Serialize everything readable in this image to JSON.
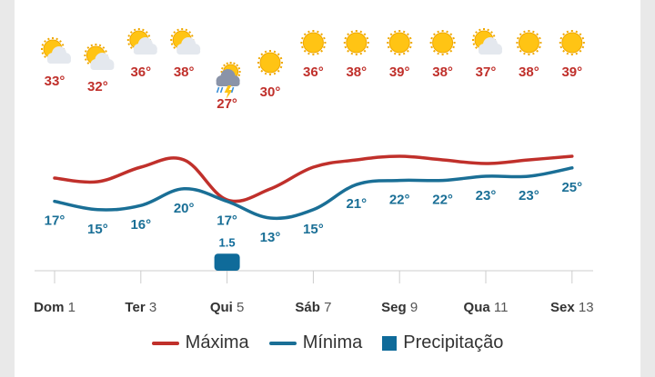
{
  "colors": {
    "max": "#c0302b",
    "min": "#1a6f96",
    "precip": "#0f6b9a",
    "axis": "#cccccc",
    "grid": "#e6e6e6"
  },
  "legend": {
    "max": "Máxima",
    "min": "Mínima",
    "precip": "Precipitação"
  },
  "chart_data": {
    "type": "line",
    "x": [
      1,
      2,
      3,
      4,
      5,
      6,
      7,
      8,
      9,
      10,
      11,
      12,
      13
    ],
    "tick_labels": [
      {
        "x": 1,
        "day": "Dom",
        "num": "1"
      },
      {
        "x": 3,
        "day": "Ter",
        "num": "3"
      },
      {
        "x": 5,
        "day": "Qui",
        "num": "5"
      },
      {
        "x": 7,
        "day": "Sáb",
        "num": "7"
      },
      {
        "x": 9,
        "day": "Seg",
        "num": "9"
      },
      {
        "x": 11,
        "day": "Qua",
        "num": "11"
      },
      {
        "x": 13,
        "day": "Sex",
        "num": "13"
      }
    ],
    "series": [
      {
        "name": "Máxima",
        "key": "max",
        "values": [
          33,
          32,
          36,
          38,
          27,
          30,
          36,
          38,
          39,
          38,
          37,
          38,
          39
        ],
        "labels": [
          "33°",
          "32°",
          "36°",
          "38°",
          "27°",
          "30°",
          "36°",
          "38°",
          "39°",
          "38°",
          "37°",
          "38°",
          "39°"
        ]
      },
      {
        "name": "Mínima",
        "key": "min",
        "values": [
          17,
          15,
          16,
          20,
          17,
          13,
          15,
          21,
          22,
          22,
          23,
          23,
          25
        ],
        "labels": [
          "17°",
          "15°",
          "16°",
          "20°",
          "17°",
          "13°",
          "15°",
          "21°",
          "22°",
          "22°",
          "23°",
          "23°",
          "25°"
        ]
      },
      {
        "name": "Precipitação",
        "key": "precip",
        "type": "bar",
        "values": [
          0,
          0,
          0,
          0,
          1.5,
          0,
          0,
          0,
          0,
          0,
          0,
          0,
          0
        ],
        "labels": [
          "",
          "",
          "",
          "",
          "1.5",
          "",
          "",
          "",
          "",
          "",
          "",
          "",
          ""
        ]
      }
    ],
    "icons": [
      "sun-cloud-icon",
      "sun-cloud-icon",
      "sun-cloud-icon",
      "sun-cloud-icon",
      "storm-icon",
      "sun-icon",
      "sun-icon",
      "sun-icon",
      "sun-icon",
      "sun-icon",
      "sun-cloud-icon",
      "sun-icon",
      "sun-icon"
    ],
    "legend_position": "bottom-center",
    "grid": false
  }
}
